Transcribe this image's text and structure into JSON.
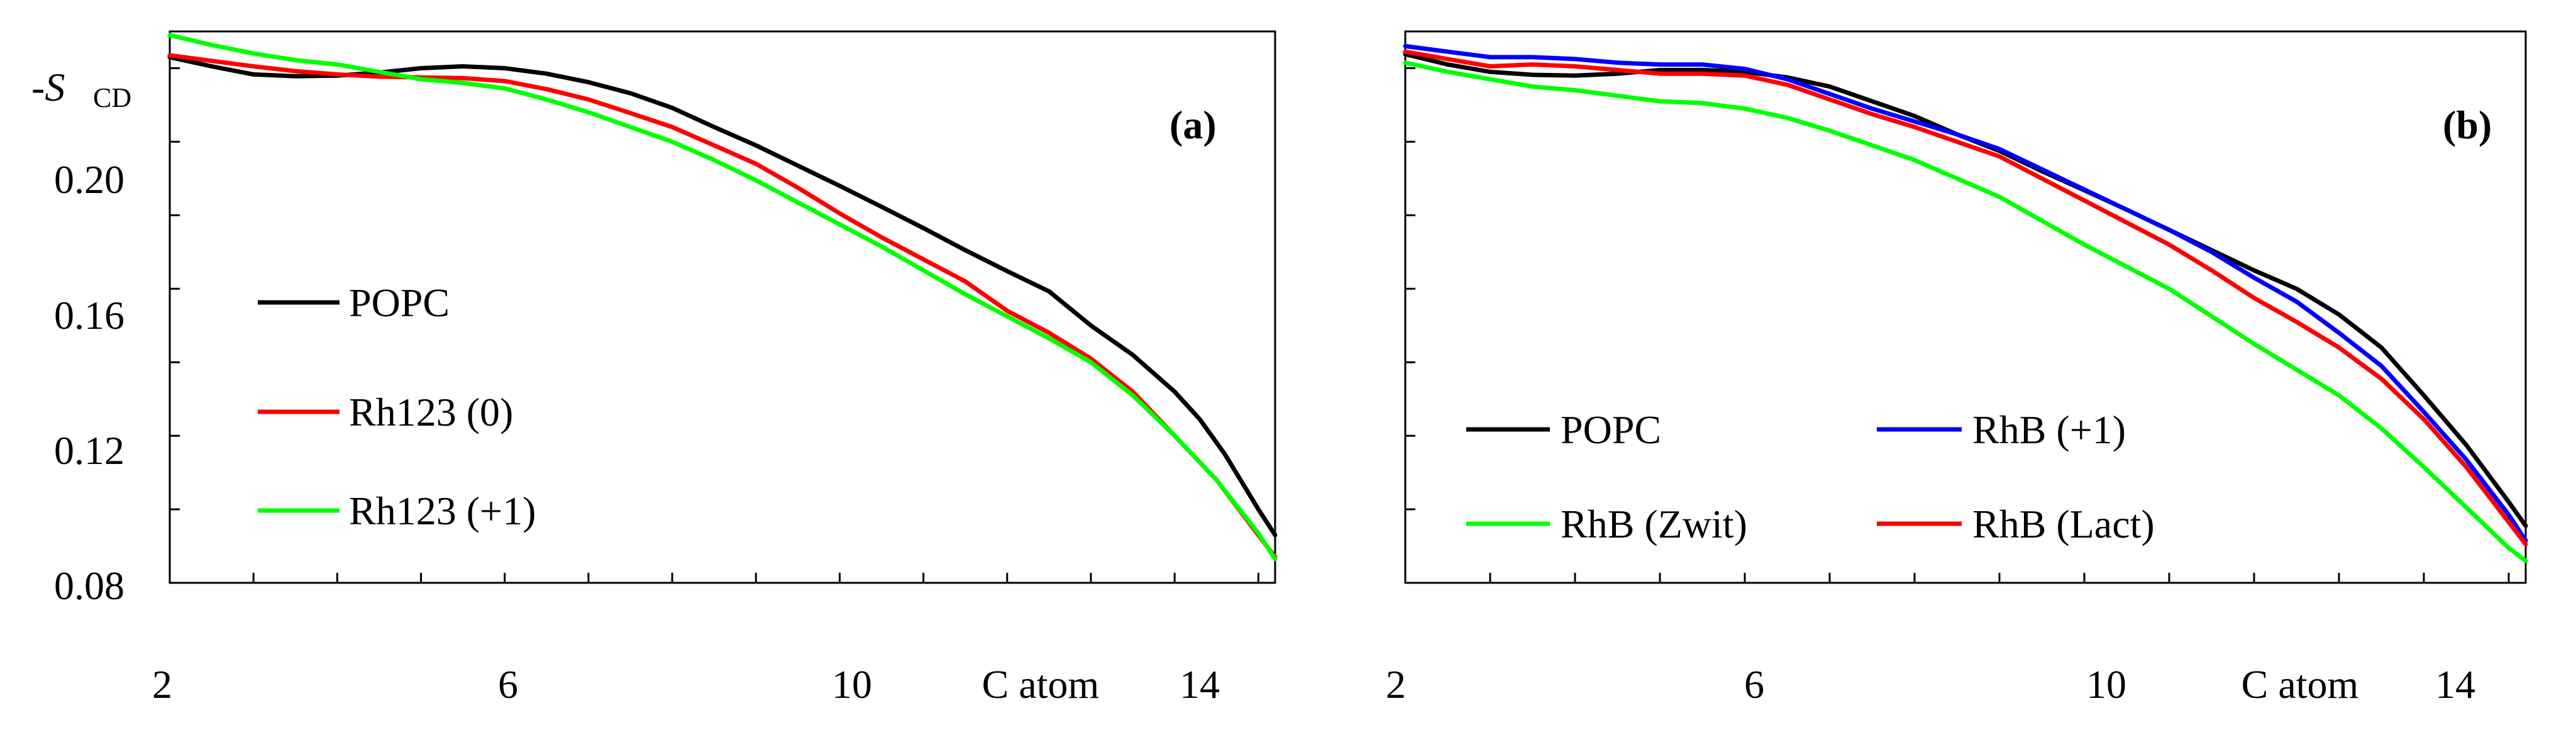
{
  "chart_data": [
    {
      "type": "line",
      "panel_label": "(a)",
      "ylabel": "-S",
      "ylabel_sub": "CD",
      "xlabel": "C atom",
      "xlim": [
        2,
        15.2
      ],
      "ylim": [
        0.08,
        0.23
      ],
      "xticks_labeled": [
        2,
        6,
        10,
        14
      ],
      "yticks_labeled": [
        0.08,
        0.12,
        0.16,
        0.2
      ],
      "ytick_labels": [
        "0.08",
        "0.12",
        "0.16",
        "0.20"
      ],
      "legend_position": "left",
      "series": [
        {
          "name": "POPC",
          "color": "#000000",
          "x": [
            2,
            2.5,
            3,
            3.5,
            4,
            4.5,
            5,
            5.5,
            6,
            6.5,
            7,
            7.5,
            8,
            8.5,
            9,
            9.5,
            10,
            10.5,
            11,
            11.5,
            12,
            12.5,
            13,
            13.5,
            14,
            14.3,
            14.6,
            15,
            15.2
          ],
          "y": [
            0.223,
            0.2205,
            0.2183,
            0.2178,
            0.218,
            0.2188,
            0.22,
            0.2205,
            0.22,
            0.2185,
            0.2162,
            0.2132,
            0.2092,
            0.204,
            0.199,
            0.1935,
            0.188,
            0.1823,
            0.1765,
            0.1705,
            0.1648,
            0.1593,
            0.15,
            0.142,
            0.132,
            0.1245,
            0.115,
            0.1,
            0.093
          ]
        },
        {
          "name": "Rh123 (0)",
          "color": "#ff0000",
          "x": [
            2,
            2.5,
            3,
            3.5,
            4,
            4.5,
            5,
            5.5,
            6,
            6.5,
            7,
            7.5,
            8,
            8.5,
            9,
            9.5,
            10,
            10.5,
            11,
            11.5,
            12,
            12.5,
            13,
            13.5,
            14,
            14.5,
            15,
            15.2
          ],
          "y": [
            0.2235,
            0.222,
            0.2205,
            0.2192,
            0.2183,
            0.2177,
            0.2175,
            0.2173,
            0.2165,
            0.2143,
            0.2115,
            0.2078,
            0.204,
            0.199,
            0.194,
            0.1875,
            0.1805,
            0.174,
            0.168,
            0.162,
            0.154,
            0.148,
            0.141,
            0.132,
            0.12,
            0.108,
            0.093,
            0.087
          ]
        },
        {
          "name": "Rh123 (+1)",
          "color": "#00ff00",
          "x": [
            2,
            2.5,
            3,
            3.5,
            4,
            4.5,
            5,
            5.5,
            6,
            6.5,
            7,
            7.5,
            8,
            8.5,
            9,
            9.5,
            10,
            10.5,
            11,
            11.5,
            12,
            12.5,
            13,
            13.5,
            14,
            14.5,
            15,
            15.2
          ],
          "y": [
            0.229,
            0.2263,
            0.224,
            0.2222,
            0.221,
            0.219,
            0.217,
            0.216,
            0.2145,
            0.2115,
            0.208,
            0.204,
            0.2,
            0.195,
            0.1895,
            0.1835,
            0.1775,
            0.1715,
            0.165,
            0.1585,
            0.1525,
            0.1465,
            0.14,
            0.131,
            0.12,
            0.108,
            0.0935,
            0.0865
          ]
        }
      ]
    },
    {
      "type": "line",
      "panel_label": "(b)",
      "xlabel": "C atom",
      "xlim": [
        2,
        15.2
      ],
      "ylim": [
        0.08,
        0.23
      ],
      "xticks_labeled": [
        2,
        6,
        10,
        14
      ],
      "legend_position": "bottom",
      "series": [
        {
          "name": "POPC",
          "color": "#000000",
          "x": [
            2,
            2.5,
            3,
            3.5,
            4,
            4.5,
            5,
            5.5,
            6,
            6.5,
            7,
            7.5,
            8,
            8.5,
            9,
            9.5,
            10,
            10.5,
            11,
            11.5,
            12,
            12.5,
            13,
            13.5,
            14,
            14.5,
            15,
            15.2
          ],
          "y": [
            0.2238,
            0.221,
            0.219,
            0.2182,
            0.218,
            0.2185,
            0.2195,
            0.2195,
            0.219,
            0.2175,
            0.215,
            0.211,
            0.207,
            0.202,
            0.1975,
            0.192,
            0.1868,
            0.1815,
            0.176,
            0.1705,
            0.165,
            0.16,
            0.153,
            0.144,
            0.131,
            0.1175,
            0.102,
            0.0955
          ]
        },
        {
          "name": "RhB (+1)",
          "color": "#0000ff",
          "x": [
            2,
            2.5,
            3,
            3.5,
            4,
            4.5,
            5,
            5.5,
            6,
            6.5,
            7,
            7.5,
            8,
            8.5,
            9,
            9.5,
            10,
            10.5,
            11,
            11.5,
            12,
            12.5,
            13,
            13.5,
            14,
            14.5,
            15,
            15.2
          ],
          "y": [
            0.226,
            0.2245,
            0.223,
            0.223,
            0.2225,
            0.2215,
            0.221,
            0.221,
            0.2198,
            0.217,
            0.213,
            0.209,
            0.2055,
            0.202,
            0.198,
            0.1925,
            0.187,
            0.1815,
            0.176,
            0.17,
            0.163,
            0.1565,
            0.148,
            0.139,
            0.1265,
            0.1135,
            0.0985,
            0.0915
          ]
        },
        {
          "name": "RhB (Zwit)",
          "color": "#00ff00",
          "x": [
            2,
            2.5,
            3,
            3.5,
            4,
            4.5,
            5,
            5.5,
            6,
            6.5,
            7,
            7.5,
            8,
            8.5,
            9,
            9.5,
            10,
            10.5,
            11,
            11.5,
            12,
            12.5,
            13,
            13.5,
            14,
            14.5,
            15,
            15.2
          ],
          "y": [
            0.2215,
            0.219,
            0.217,
            0.215,
            0.214,
            0.2125,
            0.211,
            0.2105,
            0.209,
            0.2065,
            0.203,
            0.199,
            0.195,
            0.19,
            0.185,
            0.1785,
            0.172,
            0.166,
            0.16,
            0.1525,
            0.145,
            0.138,
            0.131,
            0.122,
            0.1115,
            0.1005,
            0.0895,
            0.086
          ]
        },
        {
          "name": "RhB (Lact)",
          "color": "#ff0000",
          "x": [
            2,
            2.5,
            3,
            3.5,
            4,
            4.5,
            5,
            5.5,
            6,
            6.5,
            7,
            7.5,
            8,
            8.5,
            9,
            9.5,
            10,
            10.5,
            11,
            11.5,
            12,
            12.5,
            13,
            13.5,
            14,
            14.5,
            15,
            15.2
          ],
          "y": [
            0.2245,
            0.2225,
            0.2205,
            0.221,
            0.2205,
            0.2195,
            0.2185,
            0.2185,
            0.218,
            0.2155,
            0.2115,
            0.2075,
            0.204,
            0.2,
            0.196,
            0.19,
            0.184,
            0.178,
            0.172,
            0.165,
            0.1575,
            0.151,
            0.144,
            0.1355,
            0.1245,
            0.1115,
            0.0965,
            0.0905
          ]
        }
      ]
    }
  ]
}
